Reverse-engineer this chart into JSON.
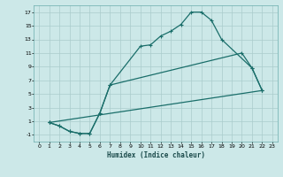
{
  "xlabel": "Humidex (Indice chaleur)",
  "bg_color": "#cce8e8",
  "grid_color": "#aacccc",
  "line_color": "#1a6e6a",
  "xlim": [
    -0.5,
    23.5
  ],
  "ylim": [
    -2.0,
    18.0
  ],
  "xticks": [
    0,
    1,
    2,
    3,
    4,
    5,
    6,
    7,
    8,
    9,
    10,
    11,
    12,
    13,
    14,
    15,
    16,
    17,
    18,
    19,
    20,
    21,
    22,
    23
  ],
  "yticks": [
    -1,
    1,
    3,
    5,
    7,
    9,
    11,
    13,
    15,
    17
  ],
  "line1_x": [
    1,
    2,
    3,
    4,
    5,
    6,
    7,
    10,
    11,
    12,
    13,
    14,
    15,
    16,
    17,
    18,
    21,
    22
  ],
  "line1_y": [
    0.8,
    0.3,
    -0.5,
    -0.8,
    -0.8,
    2.2,
    6.3,
    12.0,
    12.2,
    13.5,
    14.2,
    15.2,
    17.0,
    17.0,
    15.8,
    13.0,
    8.8,
    5.5
  ],
  "line2_x": [
    1,
    22
  ],
  "line2_y": [
    0.8,
    5.5
  ],
  "line3_x": [
    1,
    2,
    3,
    4,
    5,
    6,
    7,
    20,
    21,
    22
  ],
  "line3_y": [
    0.8,
    0.3,
    -0.5,
    -0.8,
    -0.8,
    2.2,
    6.3,
    11.0,
    8.8,
    5.5
  ]
}
